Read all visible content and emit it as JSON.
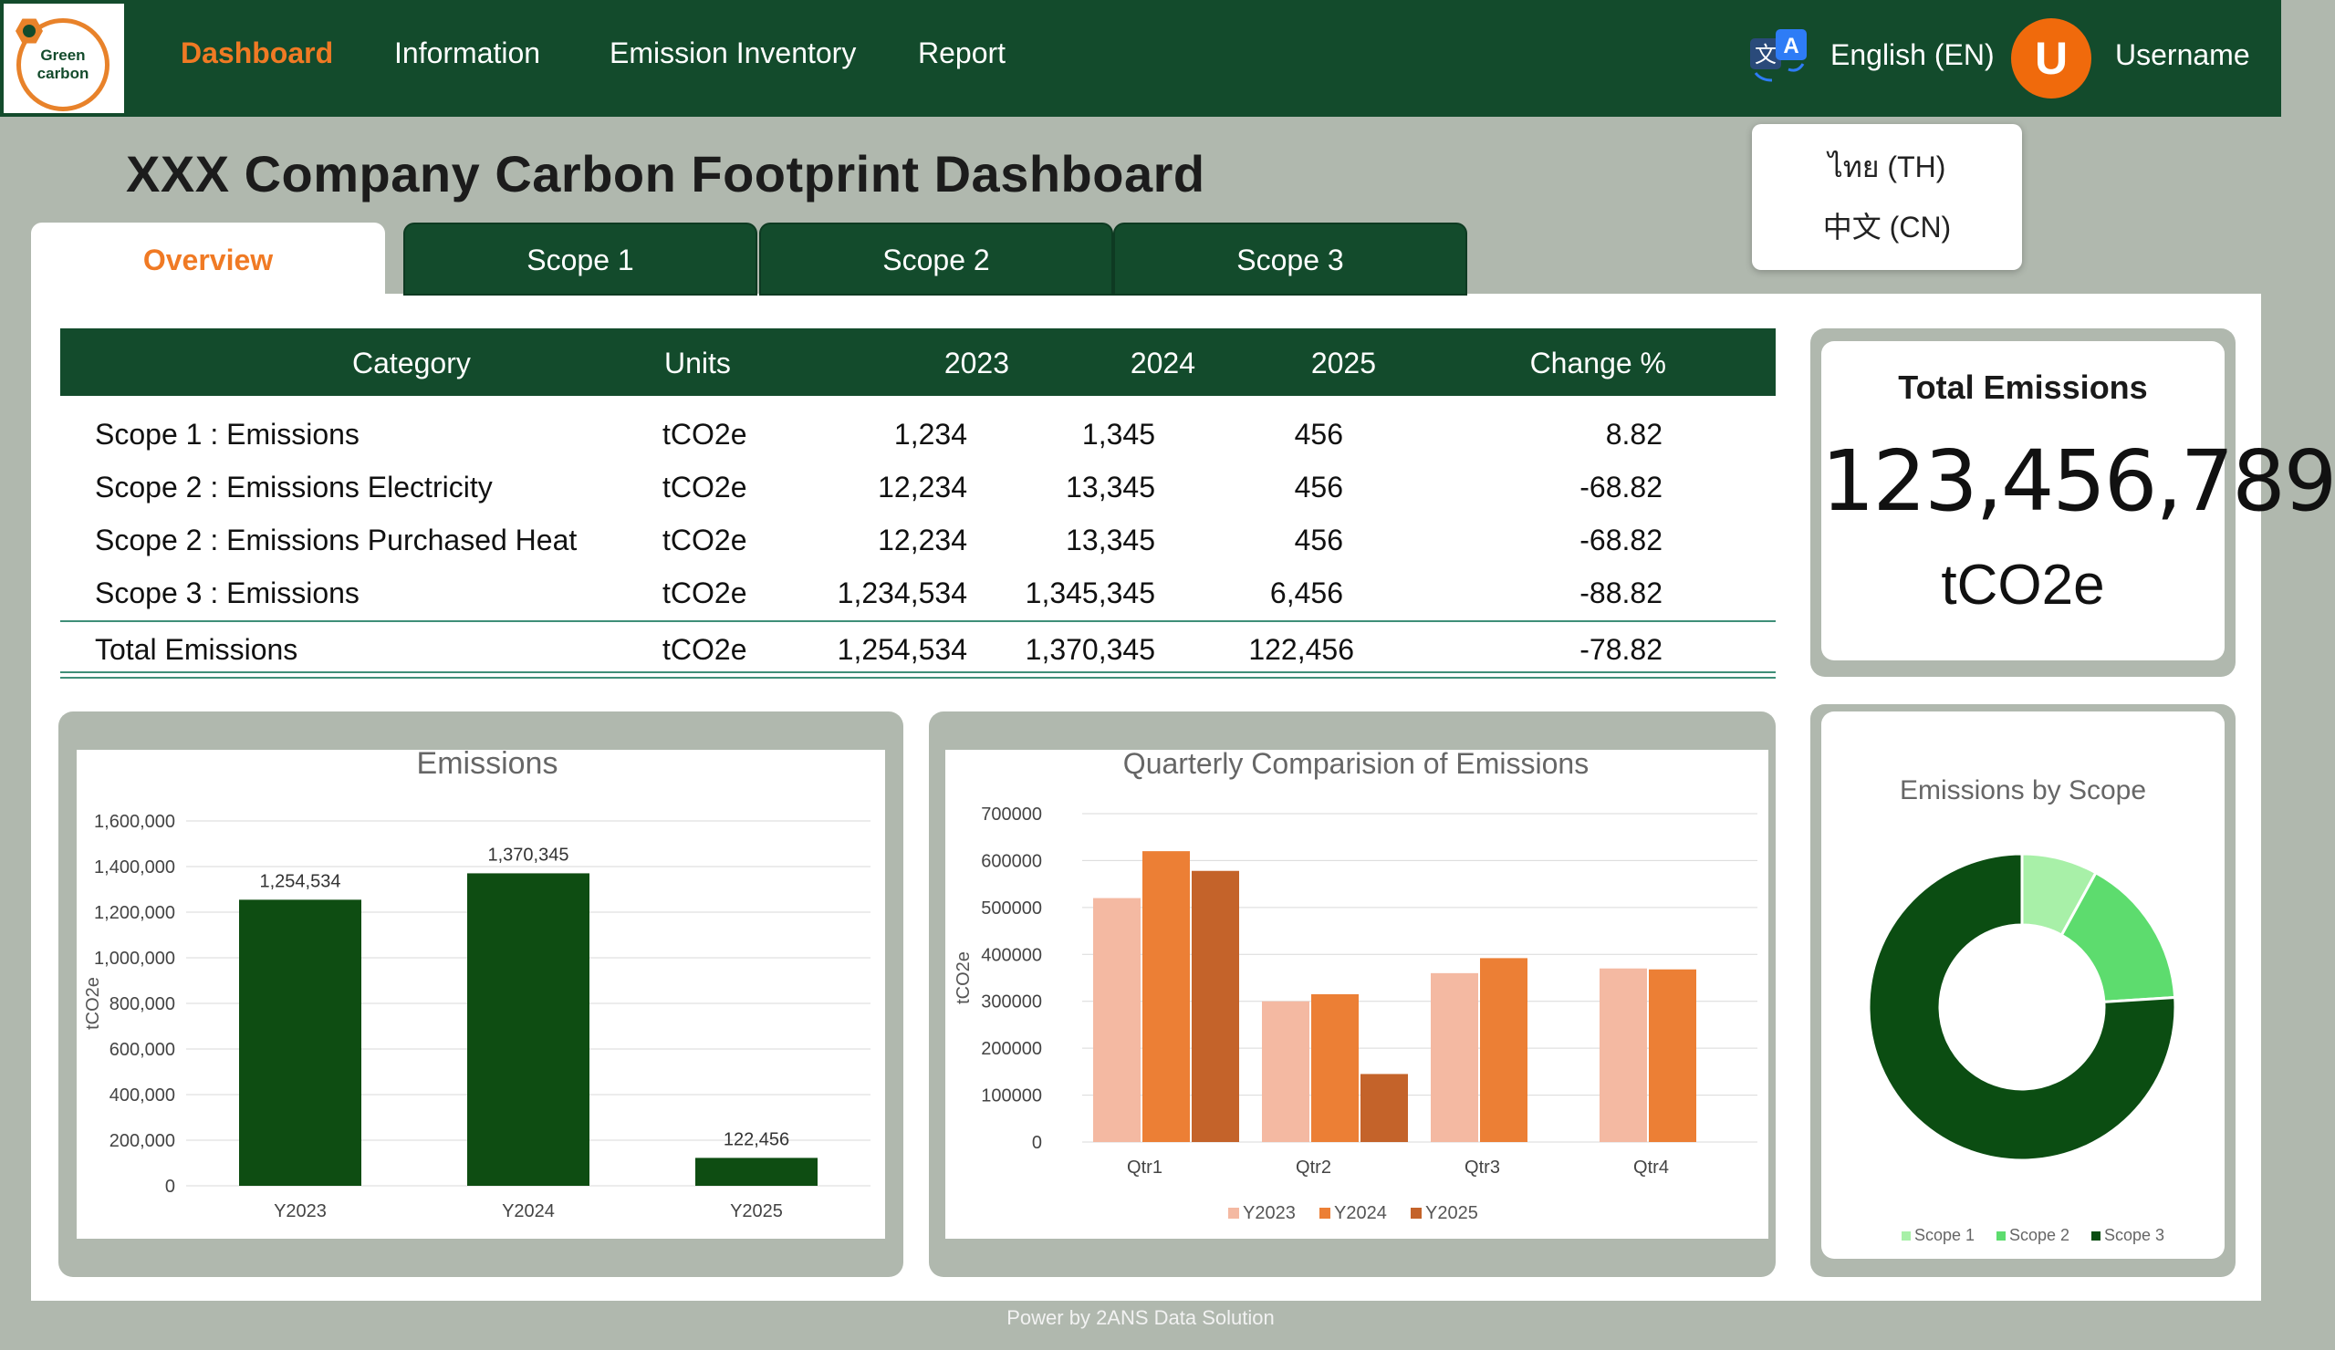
{
  "logo": {
    "line1": "Green",
    "line2": "carbon"
  },
  "nav": {
    "items": [
      {
        "label": "Dashboard",
        "active": true
      },
      {
        "label": "Information",
        "active": false
      },
      {
        "label": "Emission Inventory",
        "active": false
      },
      {
        "label": "Report",
        "active": false
      }
    ],
    "language": "English (EN)",
    "avatar_letter": "U",
    "username": "Username"
  },
  "language_menu": {
    "options": [
      "ไทย (TH)",
      "中文 (CN)"
    ]
  },
  "page_title": "XXX Company Carbon Footprint Dashboard",
  "tabs": [
    "Overview",
    "Scope 1",
    "Scope 2",
    "Scope 3"
  ],
  "table": {
    "headers": [
      "Category",
      "Units",
      "2023",
      "2024",
      "2025",
      "Change %"
    ],
    "rows": [
      [
        "Scope 1 : Emissions",
        "tCO2e",
        "1,234",
        "1,345",
        "456",
        "8.82"
      ],
      [
        "Scope 2 : Emissions Electricity",
        "tCO2e",
        "12,234",
        "13,345",
        "456",
        "-68.82"
      ],
      [
        "Scope 2 : Emissions Purchased Heat",
        "tCO2e",
        "12,234",
        "13,345",
        "456",
        "-68.82"
      ],
      [
        "Scope 3 : Emissions",
        "tCO2e",
        "1,234,534",
        "1,345,345",
        "6,456",
        "-88.82"
      ]
    ],
    "total": [
      "Total Emissions",
      "tCO2e",
      "1,254,534",
      "1,370,345",
      "122,456",
      "-78.82"
    ]
  },
  "total_card": {
    "title": "Total Emissions",
    "value": "123,456,789",
    "unit": "tCO2e"
  },
  "chart_data": [
    {
      "type": "bar",
      "title": "Emissions",
      "ylabel": "tCO2e",
      "categories": [
        "Y2023",
        "Y2024",
        "Y2025"
      ],
      "values": [
        1254534,
        1370345,
        122456
      ],
      "data_labels": [
        "1,254,534",
        "1,370,345",
        "122,456"
      ],
      "ylim": [
        0,
        1600000
      ],
      "yticks": [
        "0",
        "200,000",
        "400,000",
        "600,000",
        "800,000",
        "1,000,000",
        "1,200,000",
        "1,400,000",
        "1,600,000"
      ],
      "grid": true,
      "color": "#0e4d12"
    },
    {
      "type": "bar",
      "title": "Quarterly Comparision of Emissions",
      "ylabel": "tCO2e",
      "categories": [
        "Qtr1",
        "Qtr2",
        "Qtr3",
        "Qtr4"
      ],
      "series": [
        {
          "name": "Y2023",
          "values": [
            520000,
            300000,
            360000,
            370000
          ],
          "color": "#f4b9a2"
        },
        {
          "name": "Y2024",
          "values": [
            620000,
            315000,
            392000,
            368000
          ],
          "color": "#ec7f35"
        },
        {
          "name": "Y2025",
          "values": [
            578000,
            145000,
            null,
            null
          ],
          "color": "#c4632a"
        }
      ],
      "ylim": [
        0,
        700000
      ],
      "yticks": [
        "0",
        "100000",
        "200000",
        "300000",
        "400000",
        "500000",
        "600000",
        "700000"
      ],
      "grid": true,
      "legend": "bottom"
    },
    {
      "type": "pie",
      "title": "Emissions by Scope",
      "categories": [
        "Scope 1",
        "Scope 2",
        "Scope 3"
      ],
      "values": [
        8,
        16,
        76
      ],
      "colors": [
        "#a8f0a8",
        "#5ddc6e",
        "#0b4d12"
      ],
      "legend": "bottom"
    }
  ],
  "footer": "Power by 2ANS Data Solution"
}
